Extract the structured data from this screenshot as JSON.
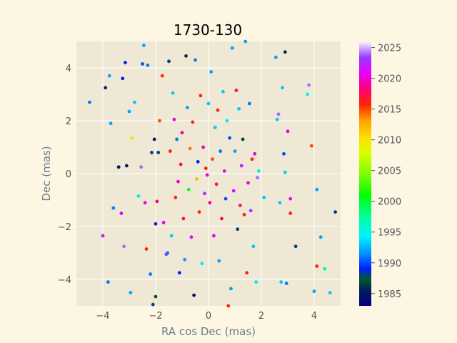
{
  "chart_data": {
    "type": "scatter",
    "title": "1730-130",
    "xlabel": "RA cos Dec (mas)",
    "ylabel": "Dec (mas)",
    "xlim": [
      -5,
      5
    ],
    "ylim": [
      -5,
      5
    ],
    "xticks": [
      -4,
      -2,
      0,
      2,
      4
    ],
    "yticks": [
      -4,
      -2,
      0,
      2,
      4
    ],
    "grid": true,
    "colorbar": {
      "range": [
        1983,
        2026
      ],
      "ticks": [
        1985,
        1990,
        1995,
        2000,
        2005,
        2010,
        2015,
        2020,
        2025
      ],
      "colormap": "gist_ncar"
    },
    "points": [
      {
        "x": -4.5,
        "y": 2.7,
        "year": 1991
      },
      {
        "x": -4.0,
        "y": -2.35,
        "year": 2022
      },
      {
        "x": -3.9,
        "y": 3.25,
        "year": 1986
      },
      {
        "x": -3.8,
        "y": -4.1,
        "year": 1991
      },
      {
        "x": -3.75,
        "y": 3.7,
        "year": 1992
      },
      {
        "x": -3.7,
        "y": 1.9,
        "year": 1992
      },
      {
        "x": -3.6,
        "y": -1.3,
        "year": 1991
      },
      {
        "x": -3.4,
        "y": 0.25,
        "year": 1985
      },
      {
        "x": -3.3,
        "y": -1.5,
        "year": 2021
      },
      {
        "x": -3.25,
        "y": 3.6,
        "year": 1989
      },
      {
        "x": -3.2,
        "y": -2.75,
        "year": 2024
      },
      {
        "x": -3.15,
        "y": 4.2,
        "year": 1989
      },
      {
        "x": -3.1,
        "y": 0.3,
        "year": 1985
      },
      {
        "x": -3.0,
        "y": 2.35,
        "year": 1992
      },
      {
        "x": -2.95,
        "y": -4.5,
        "year": 1992
      },
      {
        "x": -2.9,
        "y": 1.35,
        "year": 2010
      },
      {
        "x": -2.8,
        "y": 2.7,
        "year": 1993
      },
      {
        "x": -2.65,
        "y": -0.85,
        "year": 1995
      },
      {
        "x": -2.55,
        "y": 0.25,
        "year": 2024
      },
      {
        "x": -2.5,
        "y": 4.15,
        "year": 1990
      },
      {
        "x": -2.45,
        "y": 4.85,
        "year": 1992
      },
      {
        "x": -2.4,
        "y": -1.1,
        "year": 2020
      },
      {
        "x": -2.35,
        "y": -2.85,
        "year": 2016
      },
      {
        "x": -2.3,
        "y": 4.1,
        "year": 1991
      },
      {
        "x": -2.2,
        "y": -3.8,
        "year": 1991
      },
      {
        "x": -2.15,
        "y": 0.8,
        "year": 1988
      },
      {
        "x": -2.1,
        "y": -4.95,
        "year": 1988
      },
      {
        "x": -2.05,
        "y": 1.3,
        "year": 1985
      },
      {
        "x": -2.0,
        "y": -4.65,
        "year": 1987
      },
      {
        "x": -2.0,
        "y": -1.9,
        "year": 1989
      },
      {
        "x": -1.95,
        "y": -1.05,
        "year": 2018
      },
      {
        "x": -1.9,
        "y": 0.8,
        "year": 1988
      },
      {
        "x": -1.85,
        "y": 2.0,
        "year": 2015
      },
      {
        "x": -1.75,
        "y": 3.7,
        "year": 2016
      },
      {
        "x": -1.7,
        "y": -1.85,
        "year": 2021
      },
      {
        "x": -1.6,
        "y": -3.05,
        "year": 2022
      },
      {
        "x": -1.55,
        "y": -3.0,
        "year": 1991
      },
      {
        "x": -1.5,
        "y": 4.25,
        "year": 1988
      },
      {
        "x": -1.45,
        "y": 0.85,
        "year": 2016
      },
      {
        "x": -1.4,
        "y": -2.35,
        "year": 1993
      },
      {
        "x": -1.35,
        "y": 3.05,
        "year": 1993
      },
      {
        "x": -1.3,
        "y": 2.05,
        "year": 2021
      },
      {
        "x": -1.25,
        "y": -0.9,
        "year": 2016
      },
      {
        "x": -1.2,
        "y": 1.3,
        "year": 1991
      },
      {
        "x": -1.15,
        "y": -0.3,
        "year": 2020
      },
      {
        "x": -1.1,
        "y": -3.75,
        "year": 1989
      },
      {
        "x": -1.05,
        "y": 0.35,
        "year": 2018
      },
      {
        "x": -1.0,
        "y": 1.55,
        "year": 2019
      },
      {
        "x": -0.95,
        "y": -1.7,
        "year": 2017
      },
      {
        "x": -0.9,
        "y": -3.25,
        "year": 1992
      },
      {
        "x": -0.85,
        "y": 4.45,
        "year": 1986
      },
      {
        "x": -0.8,
        "y": 2.5,
        "year": 1992
      },
      {
        "x": -0.75,
        "y": -0.6,
        "year": 2000
      },
      {
        "x": -0.7,
        "y": 0.95,
        "year": 2014
      },
      {
        "x": -0.65,
        "y": -2.4,
        "year": 2021
      },
      {
        "x": -0.6,
        "y": 1.95,
        "year": 2016
      },
      {
        "x": -0.55,
        "y": -4.6,
        "year": 1984
      },
      {
        "x": -0.5,
        "y": 4.3,
        "year": 1991
      },
      {
        "x": -0.45,
        "y": -0.2,
        "year": 2012
      },
      {
        "x": -0.4,
        "y": 0.45,
        "year": 1989
      },
      {
        "x": -0.35,
        "y": -1.45,
        "year": 2016
      },
      {
        "x": -0.3,
        "y": 2.95,
        "year": 2016
      },
      {
        "x": -0.25,
        "y": -3.4,
        "year": 1994
      },
      {
        "x": -0.2,
        "y": 1.0,
        "year": 2020
      },
      {
        "x": -0.15,
        "y": -0.75,
        "year": 2023
      },
      {
        "x": -0.1,
        "y": 0.2,
        "year": 2016
      },
      {
        "x": -0.05,
        "y": -0.05,
        "year": 2020
      },
      {
        "x": 0.0,
        "y": 2.65,
        "year": 1993
      },
      {
        "x": 0.05,
        "y": -1.1,
        "year": 2019
      },
      {
        "x": 0.1,
        "y": 3.85,
        "year": 1992
      },
      {
        "x": 0.15,
        "y": 0.55,
        "year": 2015
      },
      {
        "x": 0.2,
        "y": -2.35,
        "year": 2021
      },
      {
        "x": 0.25,
        "y": 1.75,
        "year": 1993
      },
      {
        "x": 0.3,
        "y": -0.4,
        "year": 2017
      },
      {
        "x": 0.35,
        "y": 2.4,
        "year": 2016
      },
      {
        "x": 0.4,
        "y": -3.3,
        "year": 1992
      },
      {
        "x": 0.45,
        "y": 0.85,
        "year": 1991
      },
      {
        "x": 0.5,
        "y": -1.7,
        "year": 2018
      },
      {
        "x": 0.55,
        "y": 3.1,
        "year": 1993
      },
      {
        "x": 0.6,
        "y": 0.1,
        "year": 2021
      },
      {
        "x": 0.65,
        "y": -0.95,
        "year": 1990
      },
      {
        "x": 0.7,
        "y": 2.0,
        "year": 1994
      },
      {
        "x": 0.75,
        "y": -5.0,
        "year": 2016
      },
      {
        "x": 0.8,
        "y": 1.35,
        "year": 1990
      },
      {
        "x": 0.85,
        "y": -4.35,
        "year": 1992
      },
      {
        "x": 0.9,
        "y": 4.75,
        "year": 1992
      },
      {
        "x": 0.95,
        "y": -0.65,
        "year": 2021
      },
      {
        "x": 1.0,
        "y": 0.85,
        "year": 1992
      },
      {
        "x": 1.05,
        "y": 3.15,
        "year": 2017
      },
      {
        "x": 1.1,
        "y": -2.1,
        "year": 1988
      },
      {
        "x": 1.15,
        "y": 2.45,
        "year": 1993
      },
      {
        "x": 1.2,
        "y": -1.2,
        "year": 2017
      },
      {
        "x": 1.25,
        "y": 0.3,
        "year": 2022
      },
      {
        "x": 1.3,
        "y": 1.3,
        "year": 1987
      },
      {
        "x": 1.35,
        "y": -1.55,
        "year": 2016
      },
      {
        "x": 1.4,
        "y": 5.0,
        "year": 1992
      },
      {
        "x": 1.45,
        "y": -3.75,
        "year": 2017
      },
      {
        "x": 1.5,
        "y": -0.35,
        "year": 2020
      },
      {
        "x": 1.55,
        "y": 2.65,
        "year": 1991
      },
      {
        "x": 1.6,
        "y": -1.4,
        "year": 2023
      },
      {
        "x": 1.65,
        "y": 0.55,
        "year": 2016
      },
      {
        "x": 1.7,
        "y": -2.75,
        "year": 1993
      },
      {
        "x": 1.75,
        "y": 0.75,
        "year": 2020
      },
      {
        "x": 1.8,
        "y": -4.1,
        "year": 1994
      },
      {
        "x": 1.85,
        "y": -0.15,
        "year": 2024
      },
      {
        "x": 1.9,
        "y": 0.1,
        "year": 1994
      },
      {
        "x": 2.1,
        "y": -0.9,
        "year": 1993
      },
      {
        "x": 2.55,
        "y": 4.4,
        "year": 1992
      },
      {
        "x": 2.6,
        "y": 2.05,
        "year": 1993
      },
      {
        "x": 2.65,
        "y": 2.25,
        "year": 2024
      },
      {
        "x": 2.7,
        "y": -1.1,
        "year": 1993
      },
      {
        "x": 2.75,
        "y": -4.1,
        "year": 1993
      },
      {
        "x": 2.8,
        "y": 3.25,
        "year": 1993
      },
      {
        "x": 2.85,
        "y": 0.75,
        "year": 1990
      },
      {
        "x": 2.9,
        "y": 4.6,
        "year": 1986
      },
      {
        "x": 2.9,
        "y": 0.05,
        "year": 1993
      },
      {
        "x": 2.95,
        "y": -4.15,
        "year": 1991
      },
      {
        "x": 3.0,
        "y": 1.6,
        "year": 2020
      },
      {
        "x": 3.1,
        "y": -1.5,
        "year": 2016
      },
      {
        "x": 3.1,
        "y": -0.95,
        "year": 2021
      },
      {
        "x": 3.3,
        "y": -2.75,
        "year": 1988
      },
      {
        "x": 3.75,
        "y": 3.0,
        "year": 1995
      },
      {
        "x": 3.8,
        "y": 3.35,
        "year": 2024
      },
      {
        "x": 3.9,
        "y": 1.05,
        "year": 2015
      },
      {
        "x": 4.0,
        "y": -4.45,
        "year": 1992
      },
      {
        "x": 4.1,
        "y": -0.6,
        "year": 1992
      },
      {
        "x": 4.1,
        "y": -3.5,
        "year": 2016
      },
      {
        "x": 4.25,
        "y": -2.4,
        "year": 1992
      },
      {
        "x": 4.4,
        "y": -3.6,
        "year": 1997
      },
      {
        "x": 4.6,
        "y": -4.5,
        "year": 1993
      },
      {
        "x": 4.8,
        "y": -1.45,
        "year": 1988
      }
    ]
  }
}
